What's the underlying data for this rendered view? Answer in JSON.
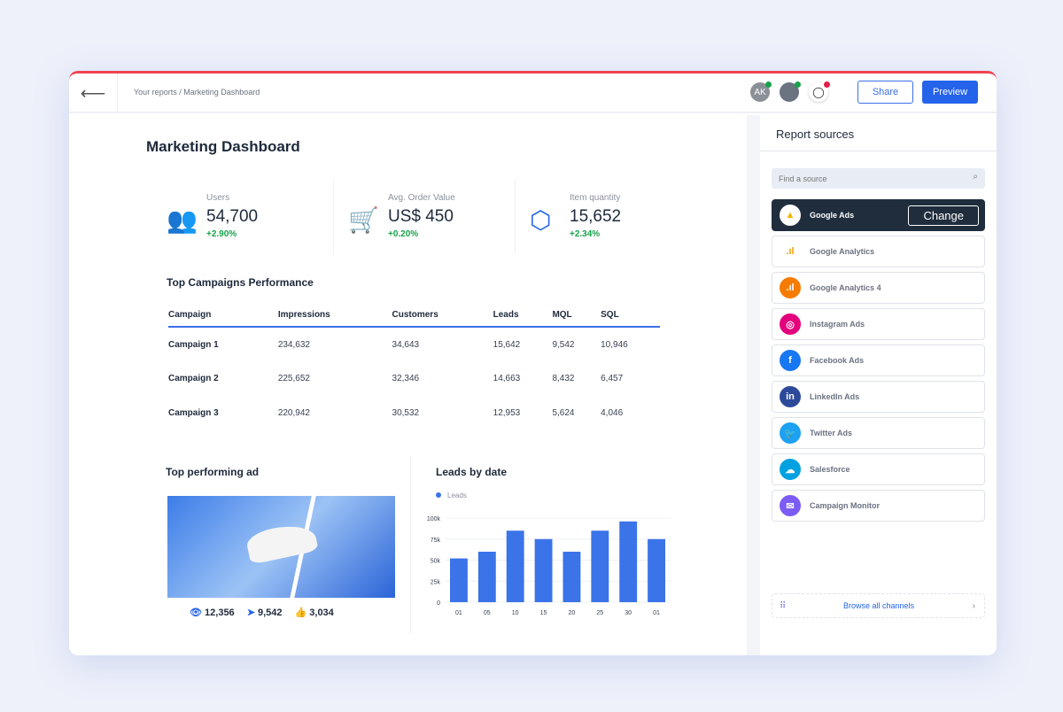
{
  "header": {
    "breadcrumb": "Your reports / Marketing Dashboard",
    "avatar_initials": "AK",
    "share": "Share",
    "preview": "Preview"
  },
  "main": {
    "title": "Marketing Dashboard",
    "kpis": [
      {
        "label": "Users",
        "value": "54,700",
        "change": "+2.90%",
        "icon": "users-icon"
      },
      {
        "label": "Avg. Order Value",
        "value": "US$ 450",
        "change": "+0.20%",
        "icon": "cart-icon"
      },
      {
        "label": "Item quantity",
        "value": "15,652",
        "change": "+2.34%",
        "icon": "box-icon"
      }
    ],
    "campaigns": {
      "title": "Top Campaigns Performance",
      "columns": [
        "Campaign",
        "Impressions",
        "Customers",
        "Leads",
        "MQL",
        "SQL"
      ],
      "rows": [
        [
          "Campaign 1",
          "234,632",
          "34,643",
          "15,642",
          "9,542",
          "10,946"
        ],
        [
          "Campaign 2",
          "225,652",
          "32,346",
          "14,663",
          "8,432",
          "6,457"
        ],
        [
          "Campaign 3",
          "220,942",
          "30,532",
          "12,953",
          "5,624",
          "4,046"
        ]
      ]
    },
    "top_ad": {
      "title": "Top performing ad",
      "views": "12,356",
      "shares": "9,542",
      "likes": "3,034"
    }
  },
  "chart_data": {
    "type": "bar",
    "title": "Leads by date",
    "legend": [
      "Leads"
    ],
    "categories": [
      "01",
      "05",
      "10",
      "15",
      "20",
      "25",
      "30",
      "01"
    ],
    "series": [
      {
        "name": "Leads",
        "values": [
          52000,
          60000,
          85000,
          75000,
          60000,
          85000,
          96000,
          75000
        ]
      }
    ],
    "yticks": [
      "0",
      "25k",
      "50k",
      "75k",
      "100k"
    ],
    "ylim": [
      0,
      100000
    ],
    "grid": true,
    "color": "#3b73e8",
    "legend_position": "top-left"
  },
  "sidebar": {
    "title": "Report sources",
    "search_placeholder": "Find a source",
    "change": "Change",
    "browse": "Browse all channels",
    "sources": [
      {
        "name": "Google Ads",
        "color": "#ffffff"
      },
      {
        "name": "Google Analytics",
        "color": "#f59e0b"
      },
      {
        "name": "Google Analytics 4",
        "color": "#f57c00"
      },
      {
        "name": "Instagram Ads",
        "color": "#e4007c"
      },
      {
        "name": "Facebook Ads",
        "color": "#1877f2"
      },
      {
        "name": "LinkedIn Ads",
        "color": "#2d4a9a"
      },
      {
        "name": "Twitter Ads",
        "color": "#1da1f2"
      },
      {
        "name": "Salesforce",
        "color": "#00a1e0"
      },
      {
        "name": "Campaign Monitor",
        "color": "#7c5cf5"
      }
    ]
  }
}
